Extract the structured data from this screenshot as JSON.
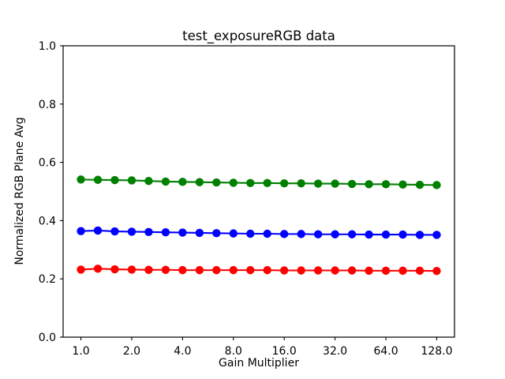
{
  "chart_data": {
    "type": "line",
    "title": "test_exposureRGB data",
    "xlabel": "Gain Multiplier",
    "ylabel": "Normalized RGB Plane Avg",
    "x_scale": "log2",
    "xlim": [
      1.0,
      128.0
    ],
    "ylim": [
      0.0,
      1.0
    ],
    "grid": false,
    "legend": "none",
    "x_ticks": [
      1.0,
      2.0,
      4.0,
      8.0,
      16.0,
      32.0,
      64.0,
      128.0
    ],
    "x_tick_labels": [
      "1.0",
      "2.0",
      "4.0",
      "8.0",
      "16.0",
      "32.0",
      "64.0",
      "128.0"
    ],
    "y_ticks": [
      0.0,
      0.2,
      0.4,
      0.6,
      0.8,
      1.0
    ],
    "y_tick_labels": [
      "0.0",
      "0.2",
      "0.4",
      "0.6",
      "0.8",
      "1.0"
    ],
    "x": [
      1.0,
      1.26,
      1.587,
      2.0,
      2.52,
      3.175,
      4.0,
      5.04,
      6.35,
      8.0,
      10.079,
      12.699,
      16.0,
      20.159,
      25.398,
      32.0,
      40.317,
      50.797,
      64.0,
      80.635,
      101.594,
      128.0
    ],
    "series": [
      {
        "name": "green-plane",
        "color": "#008000",
        "marker": "circle",
        "values": [
          0.541,
          0.54,
          0.539,
          0.538,
          0.536,
          0.534,
          0.533,
          0.532,
          0.531,
          0.53,
          0.529,
          0.529,
          0.528,
          0.528,
          0.527,
          0.527,
          0.526,
          0.525,
          0.525,
          0.524,
          0.523,
          0.522
        ]
      },
      {
        "name": "blue-plane",
        "color": "#0000ff",
        "marker": "circle",
        "values": [
          0.364,
          0.366,
          0.363,
          0.362,
          0.361,
          0.36,
          0.359,
          0.358,
          0.357,
          0.356,
          0.355,
          0.355,
          0.354,
          0.354,
          0.353,
          0.353,
          0.353,
          0.352,
          0.352,
          0.352,
          0.351,
          0.351
        ]
      },
      {
        "name": "red-plane",
        "color": "#ff0000",
        "marker": "circle",
        "values": [
          0.232,
          0.235,
          0.233,
          0.232,
          0.231,
          0.231,
          0.23,
          0.23,
          0.23,
          0.23,
          0.23,
          0.23,
          0.229,
          0.229,
          0.229,
          0.229,
          0.229,
          0.228,
          0.228,
          0.228,
          0.228,
          0.227
        ]
      }
    ],
    "colors": {
      "axes": "#000000",
      "text": "#000000",
      "background": "#ffffff"
    }
  }
}
